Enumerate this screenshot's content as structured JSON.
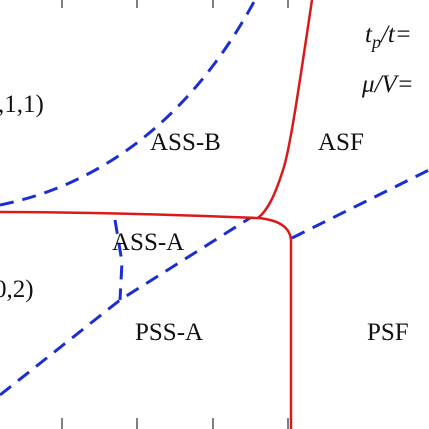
{
  "regions": {
    "ass_b": "ASS-B",
    "asf": "ASF",
    "ass_a": "ASS-A",
    "pss_a": "PSS-A",
    "psf": "PSF"
  },
  "left_labels": [
    ",1,1)",
    "0,2)"
  ],
  "params": {
    "tp_t": {
      "t": "t",
      "sub": "p",
      "rest": "/t="
    },
    "mu_v": {
      "mu": "μ",
      "rest": "/V="
    }
  }
}
